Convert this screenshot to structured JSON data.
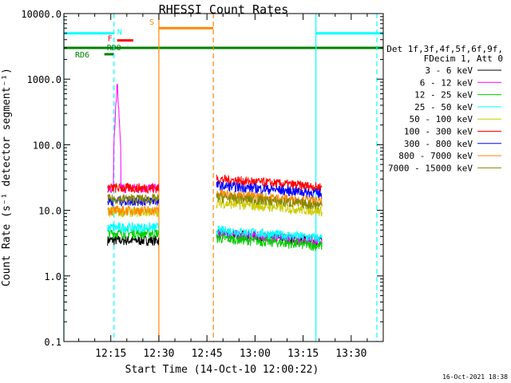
{
  "chart_data": {
    "type": "line",
    "title": "RHESSI Count Rates",
    "xlabel": "Start Time (14-Oct-10 12:00:22)",
    "ylabel": "Count Rate (s⁻¹ detector segment⁻¹)",
    "y_scale": "log",
    "ylim": [
      0.1,
      10000
    ],
    "xlim": [
      "12:00:22",
      "13:40:00"
    ],
    "y_ticks": [
      "0.1",
      "1.0",
      "10.0",
      "100.0",
      "1000.0",
      "10000.0"
    ],
    "x_ticks": [
      "12:15",
      "12:30",
      "12:45",
      "13:00",
      "13:15",
      "13:30"
    ],
    "x_tick_minutes": [
      15,
      30,
      45,
      60,
      75,
      90
    ],
    "legend": {
      "header_line1": "Det 1f,3f,4f,5f,6f,9f,",
      "header_line2": "FDecim 1, Att 0",
      "placement": "right"
    },
    "timestamp": "16-Oct-2021 18:38",
    "series": [
      {
        "name": "3 - 6 keV",
        "color": "#000000",
        "segment1": {
          "t_start": "12:14",
          "t_end": "12:30",
          "level": 3.5
        },
        "segment2": {
          "t_start": "12:48",
          "t_end": "13:21",
          "level": 4.5
        }
      },
      {
        "name": "6 - 12 keV",
        "color": "#ff00ff",
        "segment1": {
          "t_start": "12:14",
          "t_end": "12:30",
          "level": 22,
          "peak": 1100,
          "peak_time": "12:17"
        },
        "segment2": {
          "t_start": "12:48",
          "t_end": "13:21",
          "level": 4.5
        }
      },
      {
        "name": "12 - 25 keV",
        "color": "#00cc00",
        "segment1": {
          "t_start": "12:14",
          "t_end": "12:30",
          "level": 4.5
        },
        "segment2": {
          "t_start": "12:48",
          "t_end": "13:21",
          "level": 3.8
        }
      },
      {
        "name": "25 - 50 keV",
        "color": "#00ffff",
        "segment1": {
          "t_start": "12:14",
          "t_end": "12:30",
          "level": 5.5
        },
        "segment2": {
          "t_start": "12:48",
          "t_end": "13:21",
          "level": 5.0
        }
      },
      {
        "name": "50 - 100 keV",
        "color": "#cccc00",
        "segment1": {
          "t_start": "12:14",
          "t_end": "12:30",
          "level": 9.5
        },
        "segment2": {
          "t_start": "12:48",
          "t_end": "13:21",
          "level": 13
        }
      },
      {
        "name": "100 - 300 keV",
        "color": "#ff0000",
        "segment1": {
          "t_start": "12:14",
          "t_end": "12:30",
          "level": 22
        },
        "segment2": {
          "t_start": "12:48",
          "t_end": "13:21",
          "level": 30
        }
      },
      {
        "name": "300 - 800 keV",
        "color": "#0000ff",
        "segment1": {
          "t_start": "12:14",
          "t_end": "12:30",
          "level": 14
        },
        "segment2": {
          "t_start": "12:48",
          "t_end": "13:21",
          "level": 24
        }
      },
      {
        "name": "800 - 7000 keV",
        "color": "#ff8800",
        "segment1": {
          "t_start": "12:14",
          "t_end": "12:30",
          "level": 10
        },
        "segment2": {
          "t_start": "12:48",
          "t_end": "13:21",
          "level": 18
        }
      },
      {
        "name": "7000 - 15000 keV",
        "color": "#888800",
        "segment1": {
          "t_start": "12:14",
          "t_end": "12:30",
          "level": 15
        },
        "segment2": {
          "t_start": "12:48",
          "t_end": "13:21",
          "level": 16
        }
      }
    ],
    "flag_bars": [
      {
        "label": "",
        "color": "#00ffff",
        "t_start": "12:00:22",
        "t_end": "12:16",
        "level": 5000
      },
      {
        "label": "",
        "color": "#00ffff",
        "t_start": "13:19",
        "t_end": "13:40",
        "level": 5000
      },
      {
        "label": "",
        "color": "#008000",
        "t_start": "12:00:22",
        "t_end": "13:40",
        "level": 3000
      },
      {
        "label": "S",
        "color": "#ff8800",
        "t_start": "12:30",
        "t_end": "12:47",
        "level": 6000
      },
      {
        "label": "F",
        "color": "#ff0000",
        "t_start": "12:17",
        "t_end": "12:22",
        "level": 3900
      },
      {
        "label": "N",
        "color": "#00ffff",
        "t_start": "",
        "t_end": "",
        "level": 5000
      },
      {
        "label": "RD0",
        "color": "#008000",
        "t_start": "",
        "t_end": "",
        "level": 3000
      },
      {
        "label": "RD6",
        "color": "#008000",
        "t_start": "12:13",
        "t_end": "12:16",
        "level": 2400
      }
    ],
    "vertical_lines": [
      {
        "time": "12:00:22",
        "color": "#00ffff",
        "style": "solid"
      },
      {
        "time": "12:16",
        "color": "#00ffff",
        "style": "dashed"
      },
      {
        "time": "12:30",
        "color": "#ff8800",
        "style": "solid"
      },
      {
        "time": "12:47",
        "color": "#ff8800",
        "style": "dashed"
      },
      {
        "time": "13:19",
        "color": "#00ffff",
        "style": "solid"
      },
      {
        "time": "13:38",
        "color": "#00ffff",
        "style": "dashed"
      }
    ]
  }
}
